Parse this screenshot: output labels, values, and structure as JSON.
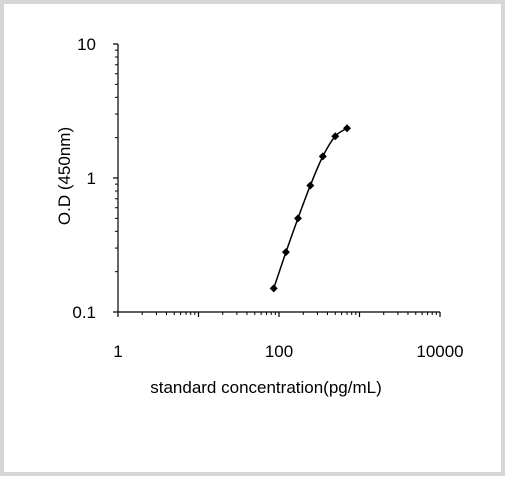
{
  "chart_data": {
    "type": "scatter",
    "title": "",
    "xlabel": "standard concentration(pg/mL)",
    "ylabel": "O.D (450nm)",
    "x_scale": "log",
    "y_scale": "log",
    "xlim": [
      1,
      10000
    ],
    "ylim": [
      0.1,
      10
    ],
    "x_tick_labels": [
      "1",
      "100",
      "10000"
    ],
    "x_tick_values": [
      1,
      100,
      10000
    ],
    "y_tick_labels": [
      "0.1",
      "1",
      "10"
    ],
    "y_tick_values": [
      0.1,
      1,
      10
    ],
    "grid": false,
    "legend": "none",
    "series": [
      {
        "connected": true,
        "marker": "diamond",
        "color": "#000000",
        "x": [
          86,
          122,
          172,
          245,
          350,
          500,
          700
        ],
        "y": [
          0.15,
          0.28,
          0.5,
          0.88,
          1.45,
          2.05,
          2.35
        ]
      }
    ]
  }
}
